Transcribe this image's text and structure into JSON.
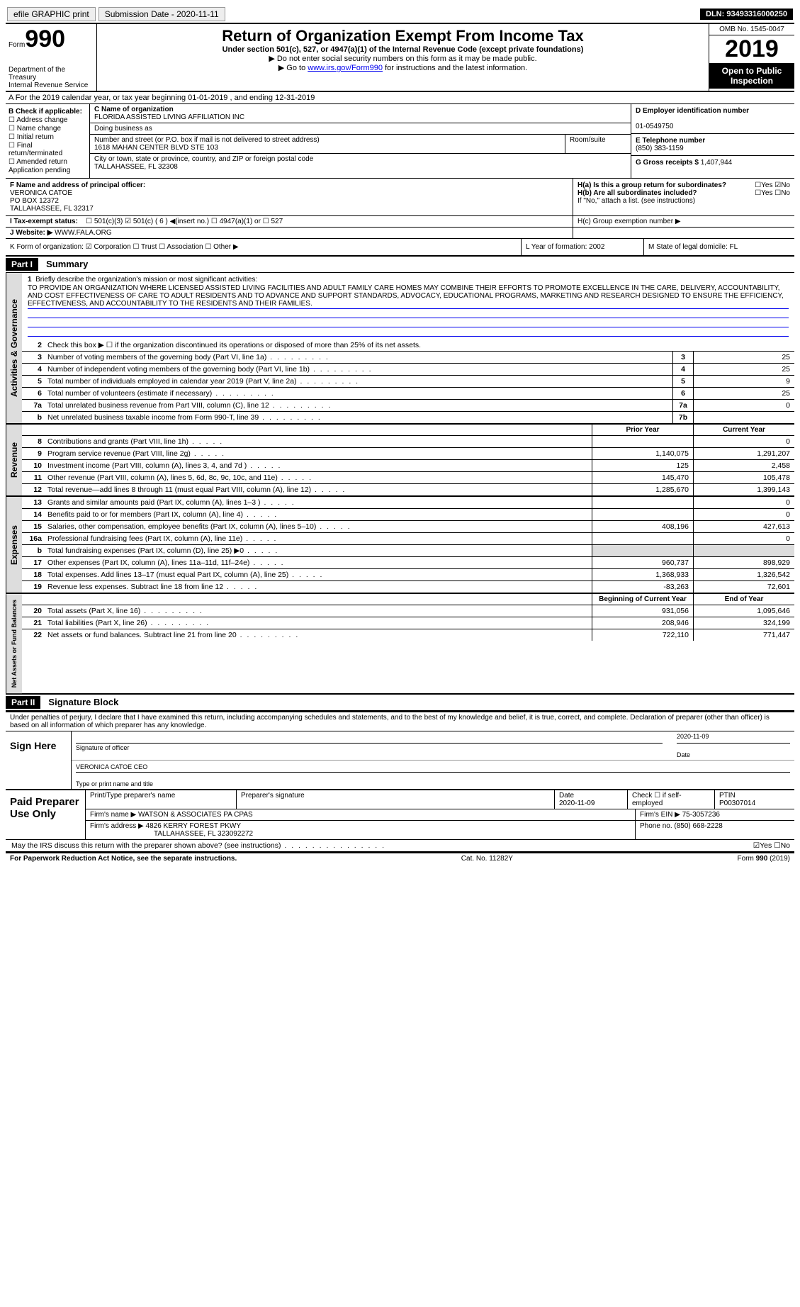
{
  "topbar": {
    "efile": "efile GRAPHIC print",
    "submission": "Submission Date - 2020-11-11",
    "dln": "DLN: 93493316000250"
  },
  "header": {
    "form_label": "Form",
    "form_no": "990",
    "dept": "Department of the Treasury\nInternal Revenue Service",
    "title": "Return of Organization Exempt From Income Tax",
    "subtitle": "Under section 501(c), 527, or 4947(a)(1) of the Internal Revenue Code (except private foundations)",
    "line1": "▶ Do not enter social security numbers on this form as it may be made public.",
    "line2_pre": "▶ Go to ",
    "line2_link": "www.irs.gov/Form990",
    "line2_post": " for instructions and the latest information.",
    "omb": "OMB No. 1545-0047",
    "year": "2019",
    "open": "Open to Public Inspection"
  },
  "line_a": "A For the 2019 calendar year, or tax year beginning 01-01-2019   , and ending 12-31-2019",
  "box_b": {
    "title": "B Check if applicable:",
    "items": [
      "☐ Address change",
      "☐ Name change",
      "☐ Initial return",
      "☐ Final return/terminated",
      "☐ Amended return",
      "  Application pending"
    ]
  },
  "box_c": {
    "name_label": "C Name of organization",
    "name": "FLORIDA ASSISTED LIVING AFFILIATION INC",
    "dba_label": "Doing business as",
    "addr_label": "Number and street (or P.O. box if mail is not delivered to street address)",
    "addr": "1618 MAHAN CENTER BLVD STE 103",
    "room": "Room/suite",
    "city_label": "City or town, state or province, country, and ZIP or foreign postal code",
    "city": "TALLAHASSEE, FL  32308"
  },
  "box_d": {
    "ein_label": "D Employer identification number",
    "ein": "01-0549750",
    "tel_label": "E Telephone number",
    "tel": "(850) 383-1159",
    "gross_label": "G Gross receipts $ ",
    "gross": "1,407,944"
  },
  "box_f": {
    "label": "F  Name and address of principal officer:",
    "name": "VERONICA CATOE",
    "po": "PO BOX 12372",
    "city": "TALLAHASSEE, FL  32317"
  },
  "box_h": {
    "ha": "H(a)  Is this a group return for subordinates?",
    "ha_ans": "☐Yes  ☑No",
    "hb": "H(b)  Are all subordinates included?",
    "hb_ans": "☐Yes  ☐No",
    "hb_note": "If \"No,\" attach a list. (see instructions)",
    "hc": "H(c)  Group exemption number ▶"
  },
  "line_i": {
    "label": "I    Tax-exempt status:",
    "opts": "☐ 501(c)(3)    ☑ 501(c) ( 6 ) ◀(insert no.)    ☐ 4947(a)(1) or   ☐ 527"
  },
  "line_j": {
    "label": "J   Website: ▶ ",
    "val": "WWW.FALA.ORG"
  },
  "line_k": {
    "label": "K Form of organization:  ☑ Corporation  ☐ Trust  ☐ Association  ☐ Other ▶",
    "l": "L Year of formation: 2002",
    "m": "M State of legal domicile: FL"
  },
  "part1": {
    "header": "Part I",
    "title": "Summary",
    "q1": "Briefly describe the organization's mission or most significant activities:",
    "mission": "TO PROVIDE AN ORGANIZATION WHERE LICENSED ASSISTED LIVING FACILITIES AND ADULT FAMILY CARE HOMES MAY COMBINE THEIR EFFORTS TO PROMOTE EXCELLENCE IN THE CARE, DELIVERY, ACCOUNTABILITY, AND COST EFFECTIVENESS OF CARE TO ADULT RESIDENTS AND TO ADVANCE AND SUPPORT STANDARDS, ADVOCACY, EDUCATIONAL PROGRAMS, MARKETING AND RESEARCH DESIGNED TO ENSURE THE EFFICIENCY, EFFECTIVENESS, AND ACCOUNTABILITY TO THE RESIDENTS AND THEIR FAMILIES.",
    "q2": "Check this box ▶ ☐ if the organization discontinued its operations or disposed of more than 25% of its net assets.",
    "rows_ag": [
      {
        "n": "3",
        "label": "Number of voting members of the governing body (Part VI, line 1a)",
        "box": "3",
        "val": "25"
      },
      {
        "n": "4",
        "label": "Number of independent voting members of the governing body (Part VI, line 1b)",
        "box": "4",
        "val": "25"
      },
      {
        "n": "5",
        "label": "Total number of individuals employed in calendar year 2019 (Part V, line 2a)",
        "box": "5",
        "val": "9"
      },
      {
        "n": "6",
        "label": "Total number of volunteers (estimate if necessary)",
        "box": "6",
        "val": "25"
      },
      {
        "n": "7a",
        "label": "Total unrelated business revenue from Part VIII, column (C), line 12",
        "box": "7a",
        "val": "0"
      },
      {
        "n": "b",
        "label": "Net unrelated business taxable income from Form 990-T, line 39",
        "box": "7b",
        "val": ""
      }
    ],
    "col_prior": "Prior Year",
    "col_curr": "Current Year",
    "rows_rev": [
      {
        "n": "8",
        "label": "Contributions and grants (Part VIII, line 1h)",
        "p": "",
        "c": "0"
      },
      {
        "n": "9",
        "label": "Program service revenue (Part VIII, line 2g)",
        "p": "1,140,075",
        "c": "1,291,207"
      },
      {
        "n": "10",
        "label": "Investment income (Part VIII, column (A), lines 3, 4, and 7d )",
        "p": "125",
        "c": "2,458"
      },
      {
        "n": "11",
        "label": "Other revenue (Part VIII, column (A), lines 5, 6d, 8c, 9c, 10c, and 11e)",
        "p": "145,470",
        "c": "105,478"
      },
      {
        "n": "12",
        "label": "Total revenue—add lines 8 through 11 (must equal Part VIII, column (A), line 12)",
        "p": "1,285,670",
        "c": "1,399,143"
      }
    ],
    "rows_exp": [
      {
        "n": "13",
        "label": "Grants and similar amounts paid (Part IX, column (A), lines 1–3 )",
        "p": "",
        "c": "0"
      },
      {
        "n": "14",
        "label": "Benefits paid to or for members (Part IX, column (A), line 4)",
        "p": "",
        "c": "0"
      },
      {
        "n": "15",
        "label": "Salaries, other compensation, employee benefits (Part IX, column (A), lines 5–10)",
        "p": "408,196",
        "c": "427,613"
      },
      {
        "n": "16a",
        "label": "Professional fundraising fees (Part IX, column (A), line 11e)",
        "p": "",
        "c": "0"
      },
      {
        "n": "b",
        "label": "Total fundraising expenses (Part IX, column (D), line 25) ▶0",
        "p": "",
        "c": "",
        "shade": true
      },
      {
        "n": "17",
        "label": "Other expenses (Part IX, column (A), lines 11a–11d, 11f–24e)",
        "p": "960,737",
        "c": "898,929"
      },
      {
        "n": "18",
        "label": "Total expenses. Add lines 13–17 (must equal Part IX, column (A), line 25)",
        "p": "1,368,933",
        "c": "1,326,542"
      },
      {
        "n": "19",
        "label": "Revenue less expenses. Subtract line 18 from line 12",
        "p": "-83,263",
        "c": "72,601"
      }
    ],
    "col_begin": "Beginning of Current Year",
    "col_end": "End of Year",
    "rows_na": [
      {
        "n": "20",
        "label": "Total assets (Part X, line 16)",
        "p": "931,056",
        "c": "1,095,646"
      },
      {
        "n": "21",
        "label": "Total liabilities (Part X, line 26)",
        "p": "208,946",
        "c": "324,199"
      },
      {
        "n": "22",
        "label": "Net assets or fund balances. Subtract line 21 from line 20",
        "p": "722,110",
        "c": "771,447"
      }
    ]
  },
  "part2": {
    "header": "Part II",
    "title": "Signature Block",
    "declare": "Under penalties of perjury, I declare that I have examined this return, including accompanying schedules and statements, and to the best of my knowledge and belief, it is true, correct, and complete. Declaration of preparer (other than officer) is based on all information of which preparer has any knowledge.",
    "sign_here": "Sign Here",
    "sig_label": "Signature of officer",
    "date_label": "Date",
    "sig_date": "2020-11-09",
    "name_label": "Type or print name and title",
    "name": "VERONICA CATOE CEO",
    "paid": "Paid Preparer Use Only",
    "prep_name_label": "Print/Type preparer's name",
    "prep_sig_label": "Preparer's signature",
    "prep_date_label": "Date",
    "prep_date": "2020-11-09",
    "check_se": "Check ☐ if self-employed",
    "ptin_label": "PTIN",
    "ptin": "P00307014",
    "firm_name_label": "Firm's name     ▶ ",
    "firm_name": "WATSON & ASSOCIATES PA CPAS",
    "firm_ein_label": "Firm's EIN ▶ ",
    "firm_ein": "75-3057236",
    "firm_addr_label": "Firm's address ▶ ",
    "firm_addr": "4826 KERRY FOREST PKWY",
    "firm_city": "TALLAHASSEE, FL  323092272",
    "phone_label": "Phone no. ",
    "phone": "(850) 668-2228",
    "discuss": "May the IRS discuss this return with the preparer shown above? (see instructions)",
    "discuss_ans": "☑Yes  ☐No"
  },
  "footer": {
    "left": "For Paperwork Reduction Act Notice, see the separate instructions.",
    "mid": "Cat. No. 11282Y",
    "right": "Form 990 (2019)"
  },
  "tabs": {
    "ag": "Activities & Governance",
    "rev": "Revenue",
    "exp": "Expenses",
    "na": "Net Assets or Fund Balances"
  }
}
